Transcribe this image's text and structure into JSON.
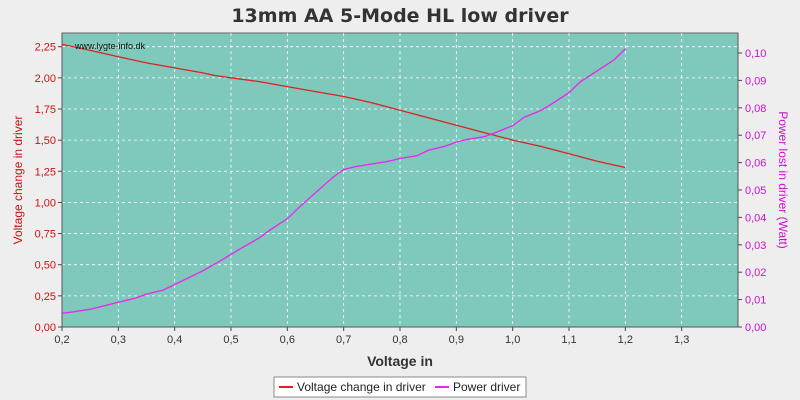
{
  "chart_data": {
    "type": "line",
    "title": "13mm AA 5-Mode HL low driver",
    "watermark": "www.lygte-info.dk",
    "xlabel": "Voltage in",
    "ylabel_left": "Voltage change in driver",
    "ylabel_right": "Power lost in driver (Watt)",
    "xlim": [
      0.2,
      1.4
    ],
    "ylim_left": [
      0,
      2.36
    ],
    "ylim_right": [
      0,
      0.1073
    ],
    "x_ticks": [
      "0,2",
      "0,3",
      "0,4",
      "0,5",
      "0,6",
      "0,7",
      "0,8",
      "0,9",
      "1,0",
      "1,1",
      "1,2",
      "1,3"
    ],
    "y_left_ticks": [
      "0,00",
      "0,25",
      "0,50",
      "0,75",
      "1,00",
      "1,25",
      "1,50",
      "1,75",
      "2,00",
      "2,25"
    ],
    "y_right_ticks": [
      "0,00",
      "0,01",
      "0,02",
      "0,03",
      "0,04",
      "0,05",
      "0,06",
      "0,07",
      "0,08",
      "0,09",
      "0,10"
    ],
    "grid": true,
    "legend_position": "bottom",
    "colors": {
      "plot_bg": "#7fc8bc",
      "grid": "#ffffff",
      "voltage": "#dd2222",
      "power": "#ee22ee",
      "left_axis_text": "#cc1111",
      "right_axis_text": "#cc11cc"
    },
    "series": [
      {
        "name": "Voltage change in driver",
        "axis": "left",
        "x": [
          0.2,
          0.25,
          0.3,
          0.35,
          0.4,
          0.45,
          0.47,
          0.5,
          0.55,
          0.6,
          0.65,
          0.7,
          0.75,
          0.8,
          0.85,
          0.9,
          0.95,
          1.0,
          1.05,
          1.1,
          1.15,
          1.2
        ],
        "y": [
          2.27,
          2.22,
          2.17,
          2.12,
          2.08,
          2.04,
          2.02,
          2.0,
          1.97,
          1.93,
          1.89,
          1.85,
          1.8,
          1.74,
          1.68,
          1.62,
          1.56,
          1.5,
          1.45,
          1.39,
          1.33,
          1.28
        ]
      },
      {
        "name": "Power driver",
        "axis": "right",
        "x": [
          0.2,
          0.22,
          0.25,
          0.27,
          0.3,
          0.33,
          0.35,
          0.38,
          0.4,
          0.42,
          0.45,
          0.48,
          0.5,
          0.52,
          0.55,
          0.57,
          0.6,
          0.62,
          0.65,
          0.68,
          0.7,
          0.72,
          0.75,
          0.78,
          0.8,
          0.83,
          0.85,
          0.88,
          0.9,
          0.92,
          0.95,
          0.97,
          1.0,
          1.02,
          1.05,
          1.07,
          1.1,
          1.12,
          1.15,
          1.18,
          1.2
        ],
        "y": [
          0.005,
          0.0055,
          0.0065,
          0.0075,
          0.009,
          0.0105,
          0.012,
          0.0135,
          0.0155,
          0.0175,
          0.0205,
          0.024,
          0.0265,
          0.029,
          0.0325,
          0.0355,
          0.0395,
          0.0435,
          0.049,
          0.0545,
          0.0575,
          0.0585,
          0.0595,
          0.0605,
          0.0615,
          0.0625,
          0.0645,
          0.066,
          0.0675,
          0.0685,
          0.0695,
          0.071,
          0.0735,
          0.0765,
          0.079,
          0.0815,
          0.0855,
          0.0895,
          0.0935,
          0.0975,
          0.1015
        ]
      }
    ]
  }
}
